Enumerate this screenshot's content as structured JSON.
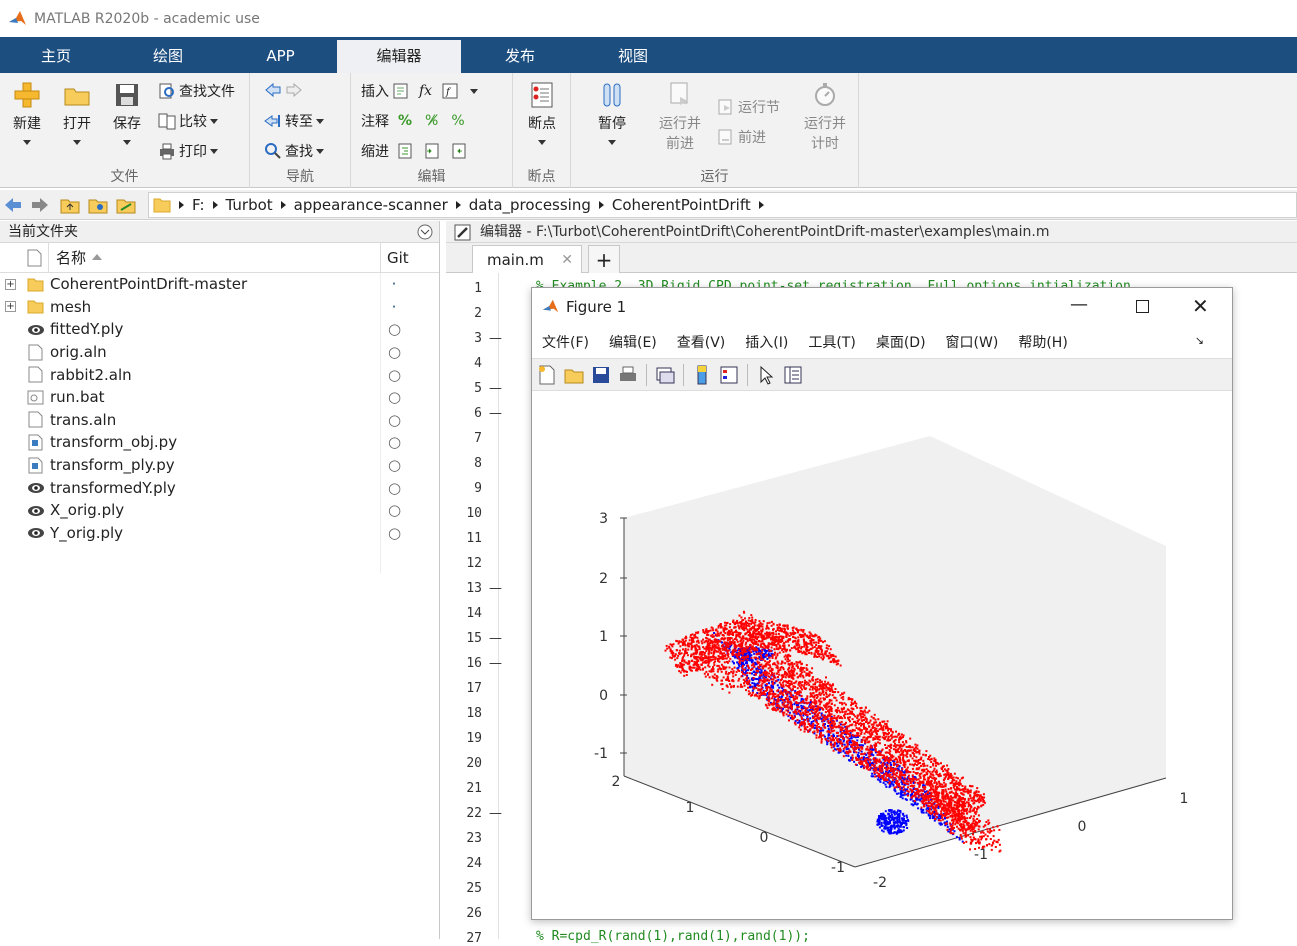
{
  "window": {
    "title": "MATLAB R2020b - academic use"
  },
  "tabs": [
    {
      "label": "主页"
    },
    {
      "label": "绘图"
    },
    {
      "label": "APP"
    },
    {
      "label": "编辑器",
      "active": true
    },
    {
      "label": "发布"
    },
    {
      "label": "视图"
    }
  ],
  "ribbon": {
    "file": {
      "group_label": "文件",
      "new": "新建",
      "open": "打开",
      "save": "保存",
      "find_files": "查找文件",
      "compare": "比较",
      "print": "打印"
    },
    "nav": {
      "group_label": "导航",
      "goto": "转至",
      "find": "查找"
    },
    "edit": {
      "group_label": "编辑",
      "insert": "插入",
      "comment": "注释",
      "indent": "缩进",
      "fx": "fx"
    },
    "breakpoints": {
      "group_label": "断点",
      "breakpoints": "断点"
    },
    "run": {
      "group_label": "运行",
      "pause": "暂停",
      "run_advance_1": "运行并",
      "run_advance_2": "前进",
      "run_section": "运行节",
      "advance": "前进",
      "run_time_1": "运行并",
      "run_time_2": "计时"
    }
  },
  "address": {
    "crumbs": [
      "F:",
      "Turbot",
      "appearance-scanner",
      "data_processing",
      "CoherentPointDrift"
    ]
  },
  "current_folder": {
    "title": "当前文件夹",
    "col_name": "名称",
    "col_git": "Git",
    "files": [
      {
        "name": "CoherentPointDrift-master",
        "type": "folder",
        "git": "·"
      },
      {
        "name": "mesh",
        "type": "folder",
        "git": "·"
      },
      {
        "name": "fittedY.ply",
        "type": "ply",
        "git": "○"
      },
      {
        "name": "orig.aln",
        "type": "doc",
        "git": "○"
      },
      {
        "name": "rabbit2.aln",
        "type": "doc",
        "git": "○"
      },
      {
        "name": "run.bat",
        "type": "bat",
        "git": "○"
      },
      {
        "name": "trans.aln",
        "type": "doc",
        "git": "○"
      },
      {
        "name": "transform_obj.py",
        "type": "py",
        "git": "○"
      },
      {
        "name": "transform_ply.py",
        "type": "py",
        "git": "○"
      },
      {
        "name": "transformedY.ply",
        "type": "ply",
        "git": "○"
      },
      {
        "name": "X_orig.ply",
        "type": "ply",
        "git": "○"
      },
      {
        "name": "Y_orig.ply",
        "type": "ply",
        "git": "○"
      }
    ]
  },
  "editor": {
    "header": "编辑器 - F:\\Turbot\\CoherentPointDrift\\CoherentPointDrift-master\\examples\\main.m",
    "tab": "main.m",
    "add_tab": "+",
    "line_numbers": [
      "1",
      "2",
      "3",
      "4",
      "5",
      "6",
      "7",
      "8",
      "9",
      "10",
      "11",
      "12",
      "13",
      "14",
      "15",
      "16",
      "17",
      "18",
      "19",
      "20",
      "21",
      "22",
      "23",
      "24",
      "25",
      "26",
      "27"
    ],
    "dash_lines": [
      "3",
      "5",
      "6",
      "13",
      "15",
      "16",
      "22"
    ],
    "code_line1": "% Example 2. 3D Rigid CPD point-set registration. Full options intialization.",
    "code_last": "% R=cpd_R(rand(1),rand(1),rand(1));"
  },
  "figure": {
    "title": "Figure 1",
    "menus": [
      "文件(F)",
      "编辑(E)",
      "查看(V)",
      "插入(I)",
      "工具(T)",
      "桌面(D)",
      "窗口(W)",
      "帮助(H)"
    ],
    "colors": {
      "series_red": "#ff0000",
      "series_blue": "#0000ff"
    }
  },
  "chart_data": {
    "type": "scatter",
    "dimensions": 3,
    "series": [],
    "z_ticks": [
      "3",
      "2",
      "1",
      "0",
      "-1"
    ],
    "x_ticks": [
      "2",
      "1",
      "0",
      "-1"
    ],
    "y_ticks": [
      "-2",
      "-1",
      "0",
      "1"
    ],
    "zlim": [
      -1,
      3
    ],
    "xlim": [
      -1,
      2
    ],
    "ylim": [
      -2,
      1
    ],
    "grid": false
  }
}
